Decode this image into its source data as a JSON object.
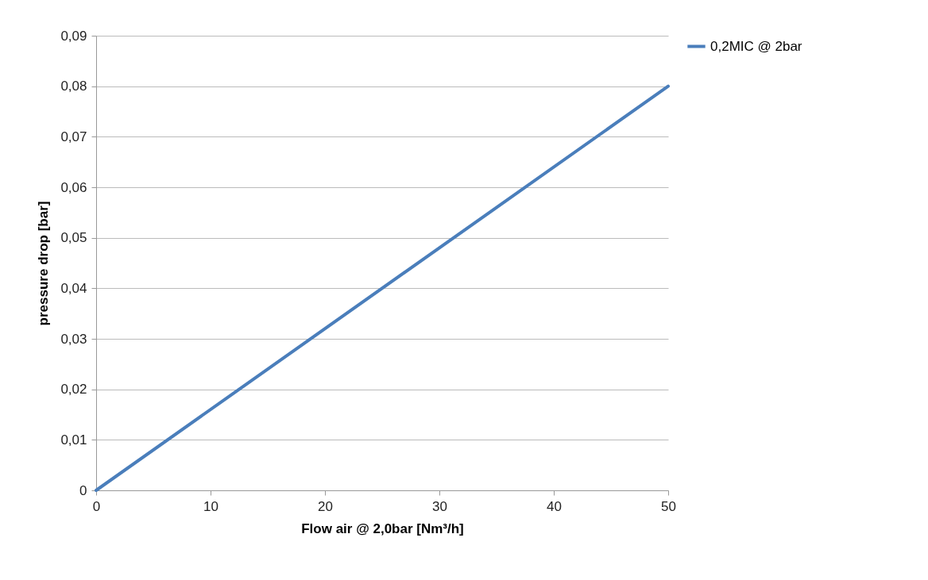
{
  "chart_data": {
    "type": "line",
    "xlabel": "Flow air @ 2,0bar [Nm³/h]",
    "ylabel": "pressure drop [bar]",
    "x": [
      0,
      50
    ],
    "series": [
      {
        "name": "0,2MIC @ 2bar",
        "color": "#4a7ebb",
        "values": [
          0,
          0.08
        ]
      }
    ],
    "xlim": [
      0,
      50
    ],
    "xticks": [
      0,
      10,
      20,
      30,
      40,
      50
    ],
    "ylim": [
      0,
      0.09
    ],
    "yticks": [
      0,
      {
        "value": 0.01,
        "label": "0,01"
      },
      {
        "value": 0.02,
        "label": "0,02"
      },
      {
        "value": 0.03,
        "label": "0,03"
      },
      {
        "value": 0.04,
        "label": "0,04"
      },
      {
        "value": 0.05,
        "label": "0,05"
      },
      {
        "value": 0.06,
        "label": "0,06"
      },
      {
        "value": 0.07,
        "label": "0,07"
      },
      {
        "value": 0.08,
        "label": "0,08"
      },
      {
        "value": 0.09,
        "label": "0,09"
      }
    ],
    "grid": "y",
    "legend": "right"
  }
}
